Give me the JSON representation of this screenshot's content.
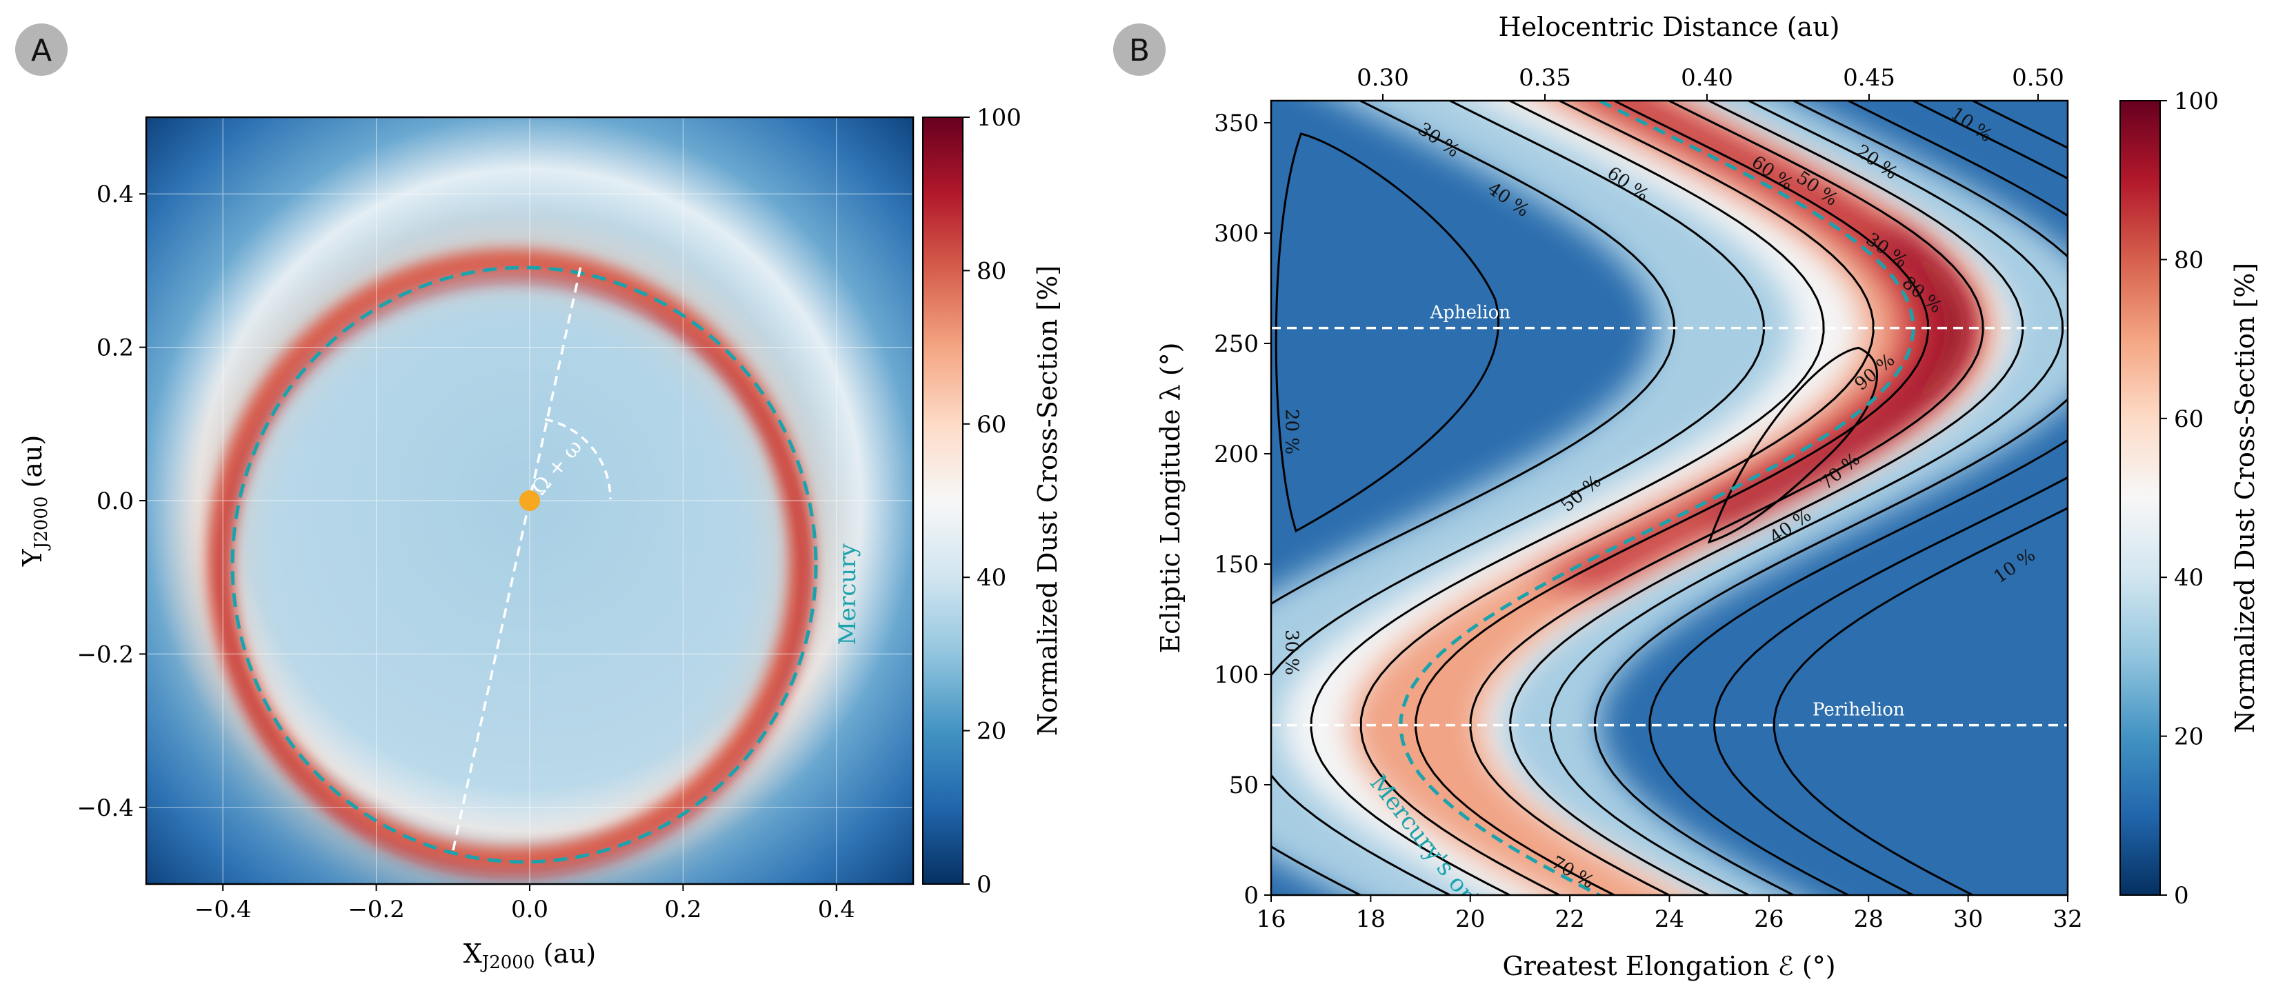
{
  "chart_data": [
    {
      "panel": "A",
      "type": "heatmap",
      "title": "",
      "xlabel": "X_J2000 (au)",
      "ylabel": "Y_J2000 (au)",
      "xlim": [
        -0.5,
        0.5
      ],
      "ylim": [
        -0.5,
        0.5
      ],
      "x_ticks": [
        -0.4,
        -0.2,
        0.0,
        0.2,
        0.4
      ],
      "y_ticks": [
        -0.4,
        -0.2,
        0.0,
        0.2,
        0.4
      ],
      "x_tick_labels": [
        "−0.4",
        "−0.2",
        "0.0",
        "0.2",
        "0.4"
      ],
      "y_tick_labels": [
        "−0.4",
        "−0.2",
        "0.0",
        "0.2",
        "0.4"
      ],
      "grid": true,
      "colorbar": {
        "label": "Normalized Dust Cross-Section [%]",
        "min": 0,
        "max": 100,
        "ticks": [
          0,
          20,
          40,
          60,
          80,
          100
        ]
      },
      "orbit_label": "Mercury",
      "angle_label": "Ω + ω",
      "orbit_ellipse_au": {
        "a": 0.387,
        "e": 0.2056,
        "perihelion_direction_deg": -101,
        "center": [
          -0.018,
          -0.078
        ]
      },
      "values_description": "Ring of high dust cross-section (~90-100%) along Mercury's orbit; interior ~35-45%; exterior decaying to ~0-10% at corners"
    },
    {
      "panel": "B",
      "type": "heatmap",
      "title": "",
      "xlabel": "Greatest Elongation ℰ (°)",
      "x2label": "Helocentric Distance (au)",
      "ylabel": "Ecliptic Longitude λ (°)",
      "xlim": [
        16,
        32
      ],
      "ylim": [
        0,
        360
      ],
      "x_ticks": [
        16,
        18,
        20,
        22,
        24,
        26,
        28,
        30,
        32
      ],
      "y_ticks": [
        0,
        50,
        100,
        150,
        200,
        250,
        300,
        350
      ],
      "x2_ticks": [
        0.3,
        0.35,
        0.4,
        0.45,
        0.5
      ],
      "x2_tick_labels": [
        "0.30",
        "0.35",
        "0.40",
        "0.45",
        "0.50"
      ],
      "colorbar": {
        "label": "Normalized Dust Cross-Section [%]",
        "min": 0,
        "max": 100,
        "ticks": [
          0,
          20,
          40,
          60,
          80,
          100
        ]
      },
      "hlines": [
        {
          "label": "Aphelion",
          "y": 257
        },
        {
          "label": "Perihelion",
          "y": 77
        }
      ],
      "orbit_label": "Mercury's orbit",
      "orbit_curve": {
        "center_elongation_deg": 23.75,
        "amplitude_deg": 5.15,
        "peak_longitude_deg": 257
      },
      "contour_levels_percent": [
        10,
        20,
        30,
        40,
        50,
        60,
        70,
        80,
        90
      ],
      "contour_labels": [
        "30 %",
        "40 %",
        "60 %",
        "60 %",
        "50 %",
        "20 %",
        "10 %",
        "30 %",
        "80 %",
        "90 %",
        "70 %",
        "50 %",
        "40 %",
        "10 %",
        "20 %",
        "30 %",
        "70 %"
      ],
      "colors": {
        "orbit": "#1aa3ad",
        "contour": "#000000"
      }
    }
  ],
  "panel_labels": [
    "A",
    "B"
  ]
}
